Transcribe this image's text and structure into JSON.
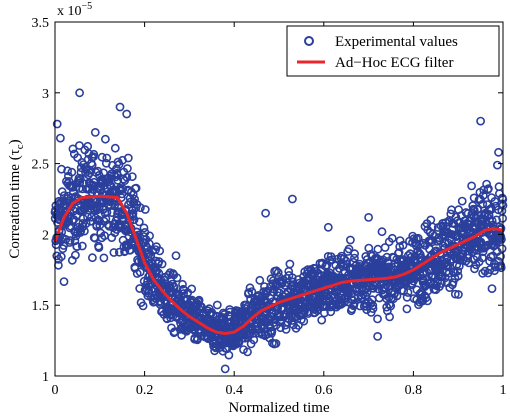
{
  "chart_data": {
    "type": "scatter",
    "xlabel": "Normalized time",
    "ylabel_main": "Correation time (τ",
    "ylabel_sub": "c",
    "ylabel_close": ")",
    "exponent_prefix": "x 10",
    "exponent_power": "−5",
    "xlim": [
      0,
      1
    ],
    "ylim": [
      1,
      3.5
    ],
    "x_ticks": [
      0,
      0.2,
      0.4,
      0.6,
      0.8,
      1
    ],
    "x_tick_labels": [
      "0",
      "0.2",
      "0.4",
      "0.6",
      "0.8",
      "1"
    ],
    "y_ticks": [
      1,
      1.5,
      2,
      2.5,
      3,
      3.5
    ],
    "y_tick_labels": [
      "1",
      "1.5",
      "2",
      "2.5",
      "3",
      "3.5"
    ],
    "grid": false,
    "legend_position": "top-right",
    "series": [
      {
        "name": "Experimental values",
        "kind": "scatter",
        "color": "#2b3f9c",
        "marker": "circle-open",
        "envelope_x": [
          0,
          0.03,
          0.06,
          0.1,
          0.14,
          0.17,
          0.2,
          0.23,
          0.26,
          0.3,
          0.34,
          0.37,
          0.4,
          0.44,
          0.48,
          0.52,
          0.56,
          0.6,
          0.65,
          0.7,
          0.75,
          0.8,
          0.85,
          0.9,
          0.95,
          1
        ],
        "envelope_center": [
          2.0,
          2.17,
          2.26,
          2.27,
          2.25,
          2.1,
          1.82,
          1.65,
          1.52,
          1.41,
          1.34,
          1.31,
          1.33,
          1.41,
          1.49,
          1.54,
          1.58,
          1.62,
          1.67,
          1.69,
          1.7,
          1.75,
          1.85,
          1.93,
          2.0,
          2.04
        ],
        "envelope_spread": [
          0.28,
          0.32,
          0.32,
          0.3,
          0.3,
          0.3,
          0.26,
          0.2,
          0.18,
          0.16,
          0.14,
          0.13,
          0.14,
          0.18,
          0.2,
          0.2,
          0.2,
          0.2,
          0.2,
          0.2,
          0.2,
          0.22,
          0.24,
          0.26,
          0.28,
          0.3
        ],
        "outliers": [
          [
            0.005,
            2.78
          ],
          [
            0.012,
            2.68
          ],
          [
            0.055,
            3.0
          ],
          [
            0.09,
            2.72
          ],
          [
            0.145,
            2.9
          ],
          [
            0.16,
            2.85
          ],
          [
            0.27,
            1.85
          ],
          [
            0.38,
            1.05
          ],
          [
            0.47,
            2.15
          ],
          [
            0.53,
            2.25
          ],
          [
            0.61,
            2.05
          ],
          [
            0.7,
            2.12
          ],
          [
            0.72,
            1.28
          ],
          [
            0.95,
            2.8
          ],
          [
            0.99,
            2.58
          ],
          [
            0.995,
            1.78
          ]
        ],
        "point_count": 2000
      },
      {
        "name": "Ad−Hoc ECG filter",
        "kind": "line",
        "color": "#e8262c",
        "x": [
          0,
          0.02,
          0.04,
          0.06,
          0.08,
          0.1,
          0.12,
          0.14,
          0.16,
          0.18,
          0.2,
          0.22,
          0.24,
          0.26,
          0.28,
          0.3,
          0.32,
          0.34,
          0.36,
          0.38,
          0.4,
          0.42,
          0.44,
          0.46,
          0.48,
          0.5,
          0.52,
          0.54,
          0.56,
          0.58,
          0.6,
          0.62,
          0.64,
          0.66,
          0.68,
          0.7,
          0.72,
          0.74,
          0.76,
          0.78,
          0.8,
          0.82,
          0.84,
          0.86,
          0.88,
          0.9,
          0.92,
          0.94,
          0.96,
          0.98,
          1.0
        ],
        "y": [
          1.95,
          2.12,
          2.22,
          2.26,
          2.265,
          2.27,
          2.265,
          2.26,
          2.15,
          1.98,
          1.8,
          1.68,
          1.6,
          1.53,
          1.47,
          1.42,
          1.38,
          1.34,
          1.31,
          1.3,
          1.31,
          1.35,
          1.41,
          1.46,
          1.49,
          1.52,
          1.54,
          1.56,
          1.58,
          1.6,
          1.62,
          1.64,
          1.66,
          1.67,
          1.675,
          1.68,
          1.685,
          1.69,
          1.7,
          1.72,
          1.75,
          1.79,
          1.83,
          1.87,
          1.9,
          1.93,
          1.96,
          1.99,
          2.03,
          2.04,
          2.03
        ]
      }
    ]
  }
}
